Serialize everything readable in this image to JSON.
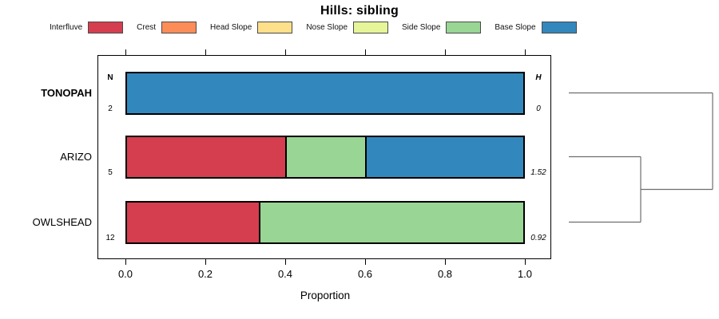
{
  "title": "Hills: sibling",
  "chart_data": {
    "type": "bar",
    "subtype": "stacked-horizontal-proportion",
    "title": "Hills: sibling",
    "xlabel": "Proportion",
    "xlim": [
      0,
      1
    ],
    "xticks": [
      {
        "value": 0.0,
        "label": "0.0"
      },
      {
        "value": 0.2,
        "label": "0.2"
      },
      {
        "value": 0.4,
        "label": "0.4"
      },
      {
        "value": 0.6,
        "label": "0.6"
      },
      {
        "value": 0.8,
        "label": "0.8"
      },
      {
        "value": 1.0,
        "label": "1.0"
      }
    ],
    "legend_position": "top",
    "legend": [
      {
        "label": "Interfluve",
        "color": "#D53E4F"
      },
      {
        "label": "Crest",
        "color": "#FC8D59"
      },
      {
        "label": "Head Slope",
        "color": "#FEE08B"
      },
      {
        "label": "Nose Slope",
        "color": "#E6F598"
      },
      {
        "label": "Side Slope",
        "color": "#99D594"
      },
      {
        "label": "Base Slope",
        "color": "#3288BD"
      }
    ],
    "columns": {
      "n_header": "N",
      "h_header": "H"
    },
    "rows": [
      {
        "label": "TONOPAH",
        "emphasis": true,
        "n": "2",
        "h": "0",
        "segments": [
          {
            "category": "Base Slope",
            "value": 1.0
          }
        ]
      },
      {
        "label": "ARIZO",
        "emphasis": false,
        "n": "5",
        "h": "1.52",
        "segments": [
          {
            "category": "Interfluve",
            "value": 0.4
          },
          {
            "category": "Side Slope",
            "value": 0.2
          },
          {
            "category": "Base Slope",
            "value": 0.4
          }
        ]
      },
      {
        "label": "OWLSHEAD",
        "emphasis": false,
        "n": "12",
        "h": "0.92",
        "segments": [
          {
            "category": "Interfluve",
            "value": 0.333
          },
          {
            "category": "Side Slope",
            "value": 0.667
          }
        ]
      }
    ],
    "dendrogram": {
      "orientation": "right",
      "leaves": [
        "TONOPAH",
        "ARIZO",
        "OWLSHEAD"
      ],
      "merges": [
        {
          "children": [
            "ARIZO",
            "OWLSHEAD"
          ],
          "rel_height": 0.5
        },
        {
          "children": [
            "merge-0",
            "TONOPAH"
          ],
          "rel_height": 1.0
        }
      ],
      "line_color": "#6e6e6e"
    }
  }
}
